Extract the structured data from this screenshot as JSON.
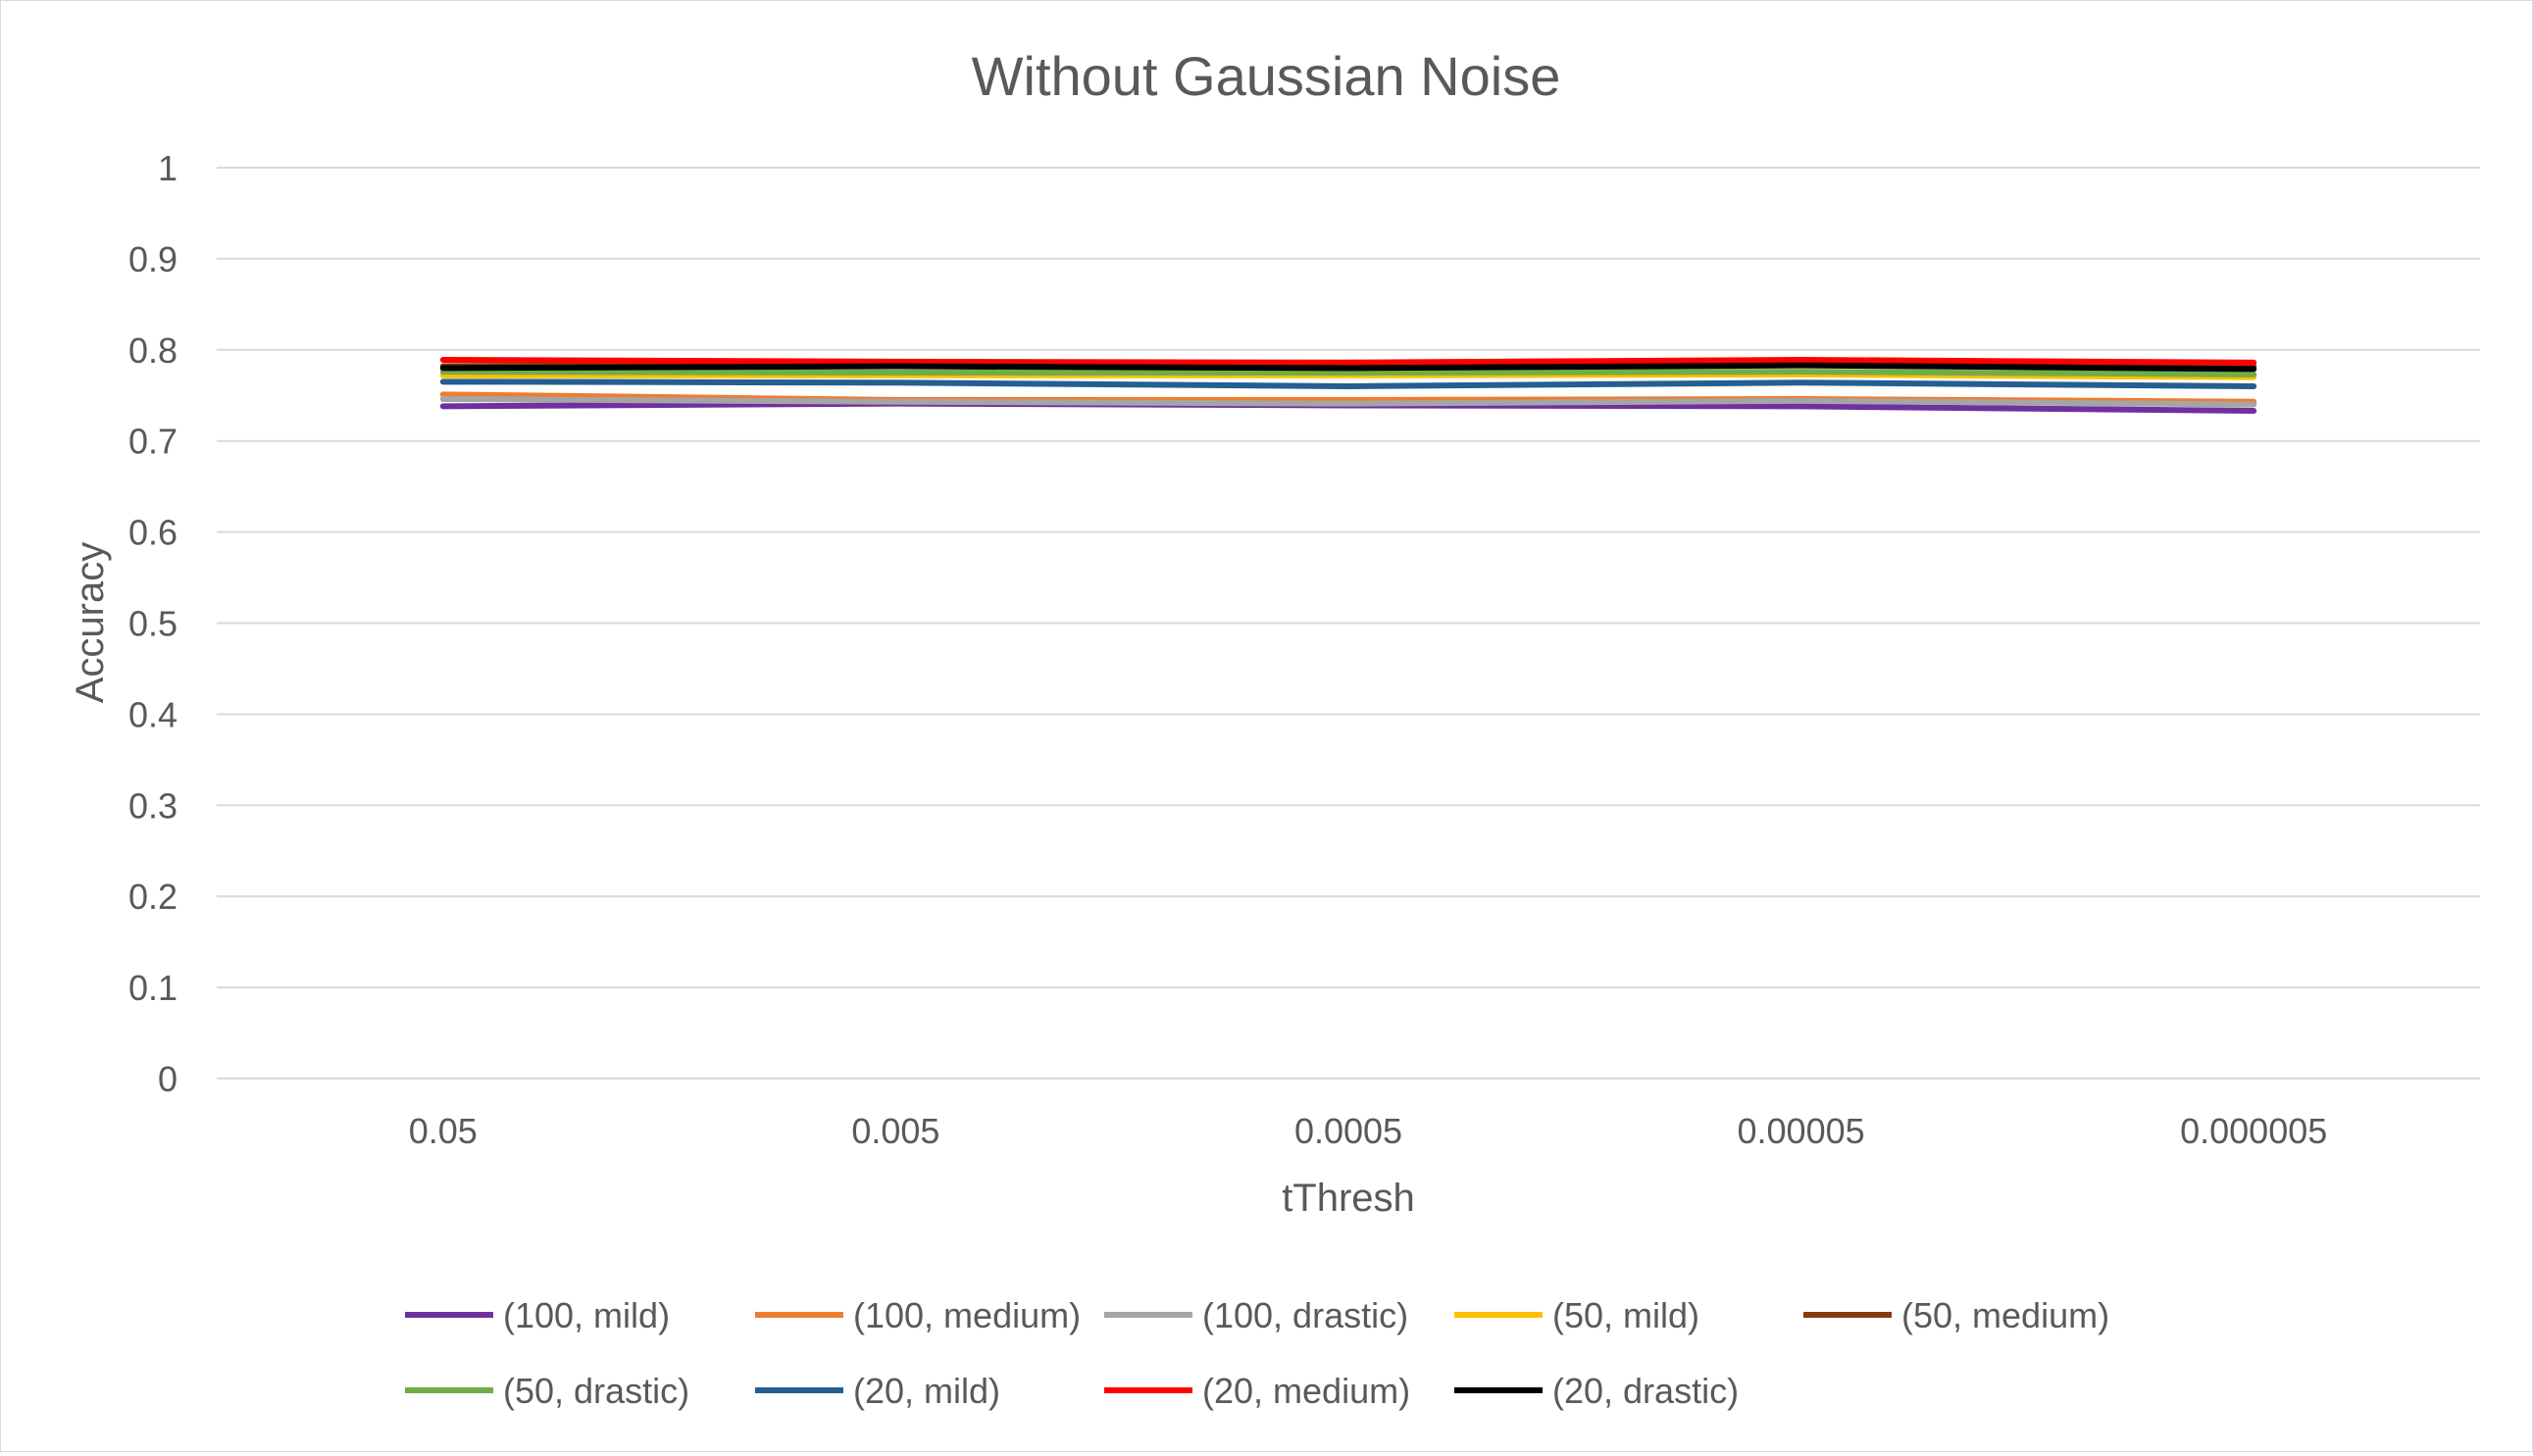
{
  "chart_data": {
    "type": "line",
    "title": "Without Gaussian Noise",
    "xlabel": "tThresh",
    "ylabel": "Accuracy",
    "categories": [
      "0.05",
      "0.005",
      "0.0005",
      "0.00005",
      "0.000005"
    ],
    "ylim": [
      0,
      1
    ],
    "yticks": [
      "0",
      "0.1",
      "0.2",
      "0.3",
      "0.4",
      "0.5",
      "0.6",
      "0.7",
      "0.8",
      "0.9",
      "1"
    ],
    "grid": true,
    "legend_position": "bottom",
    "series": [
      {
        "name": "(100, mild)",
        "color": "#7030a0",
        "values": [
          0.738,
          0.741,
          0.739,
          0.738,
          0.733
        ]
      },
      {
        "name": "(100, medium)",
        "color": "#ed7d31",
        "values": [
          0.751,
          0.745,
          0.745,
          0.746,
          0.743
        ]
      },
      {
        "name": "(100, drastic)",
        "color": "#a5a5a5",
        "values": [
          0.746,
          0.743,
          0.741,
          0.744,
          0.74
        ]
      },
      {
        "name": "(50, mild)",
        "color": "#ffc000",
        "values": [
          0.772,
          0.772,
          0.772,
          0.773,
          0.77
        ]
      },
      {
        "name": "(50, medium)",
        "color": "#843c0c",
        "values": [
          0.782,
          0.784,
          0.783,
          0.785,
          0.782
        ]
      },
      {
        "name": "(50, drastic)",
        "color": "#70ad47",
        "values": [
          0.776,
          0.775,
          0.775,
          0.776,
          0.773
        ]
      },
      {
        "name": "(20, mild)",
        "color": "#255e91",
        "values": [
          0.765,
          0.764,
          0.76,
          0.764,
          0.76
        ]
      },
      {
        "name": "(20, medium)",
        "color": "#ff0000",
        "values": [
          0.789,
          0.787,
          0.786,
          0.789,
          0.786
        ]
      },
      {
        "name": "(20, drastic)",
        "color": "#000000",
        "values": [
          0.78,
          0.782,
          0.78,
          0.783,
          0.779
        ]
      }
    ]
  }
}
